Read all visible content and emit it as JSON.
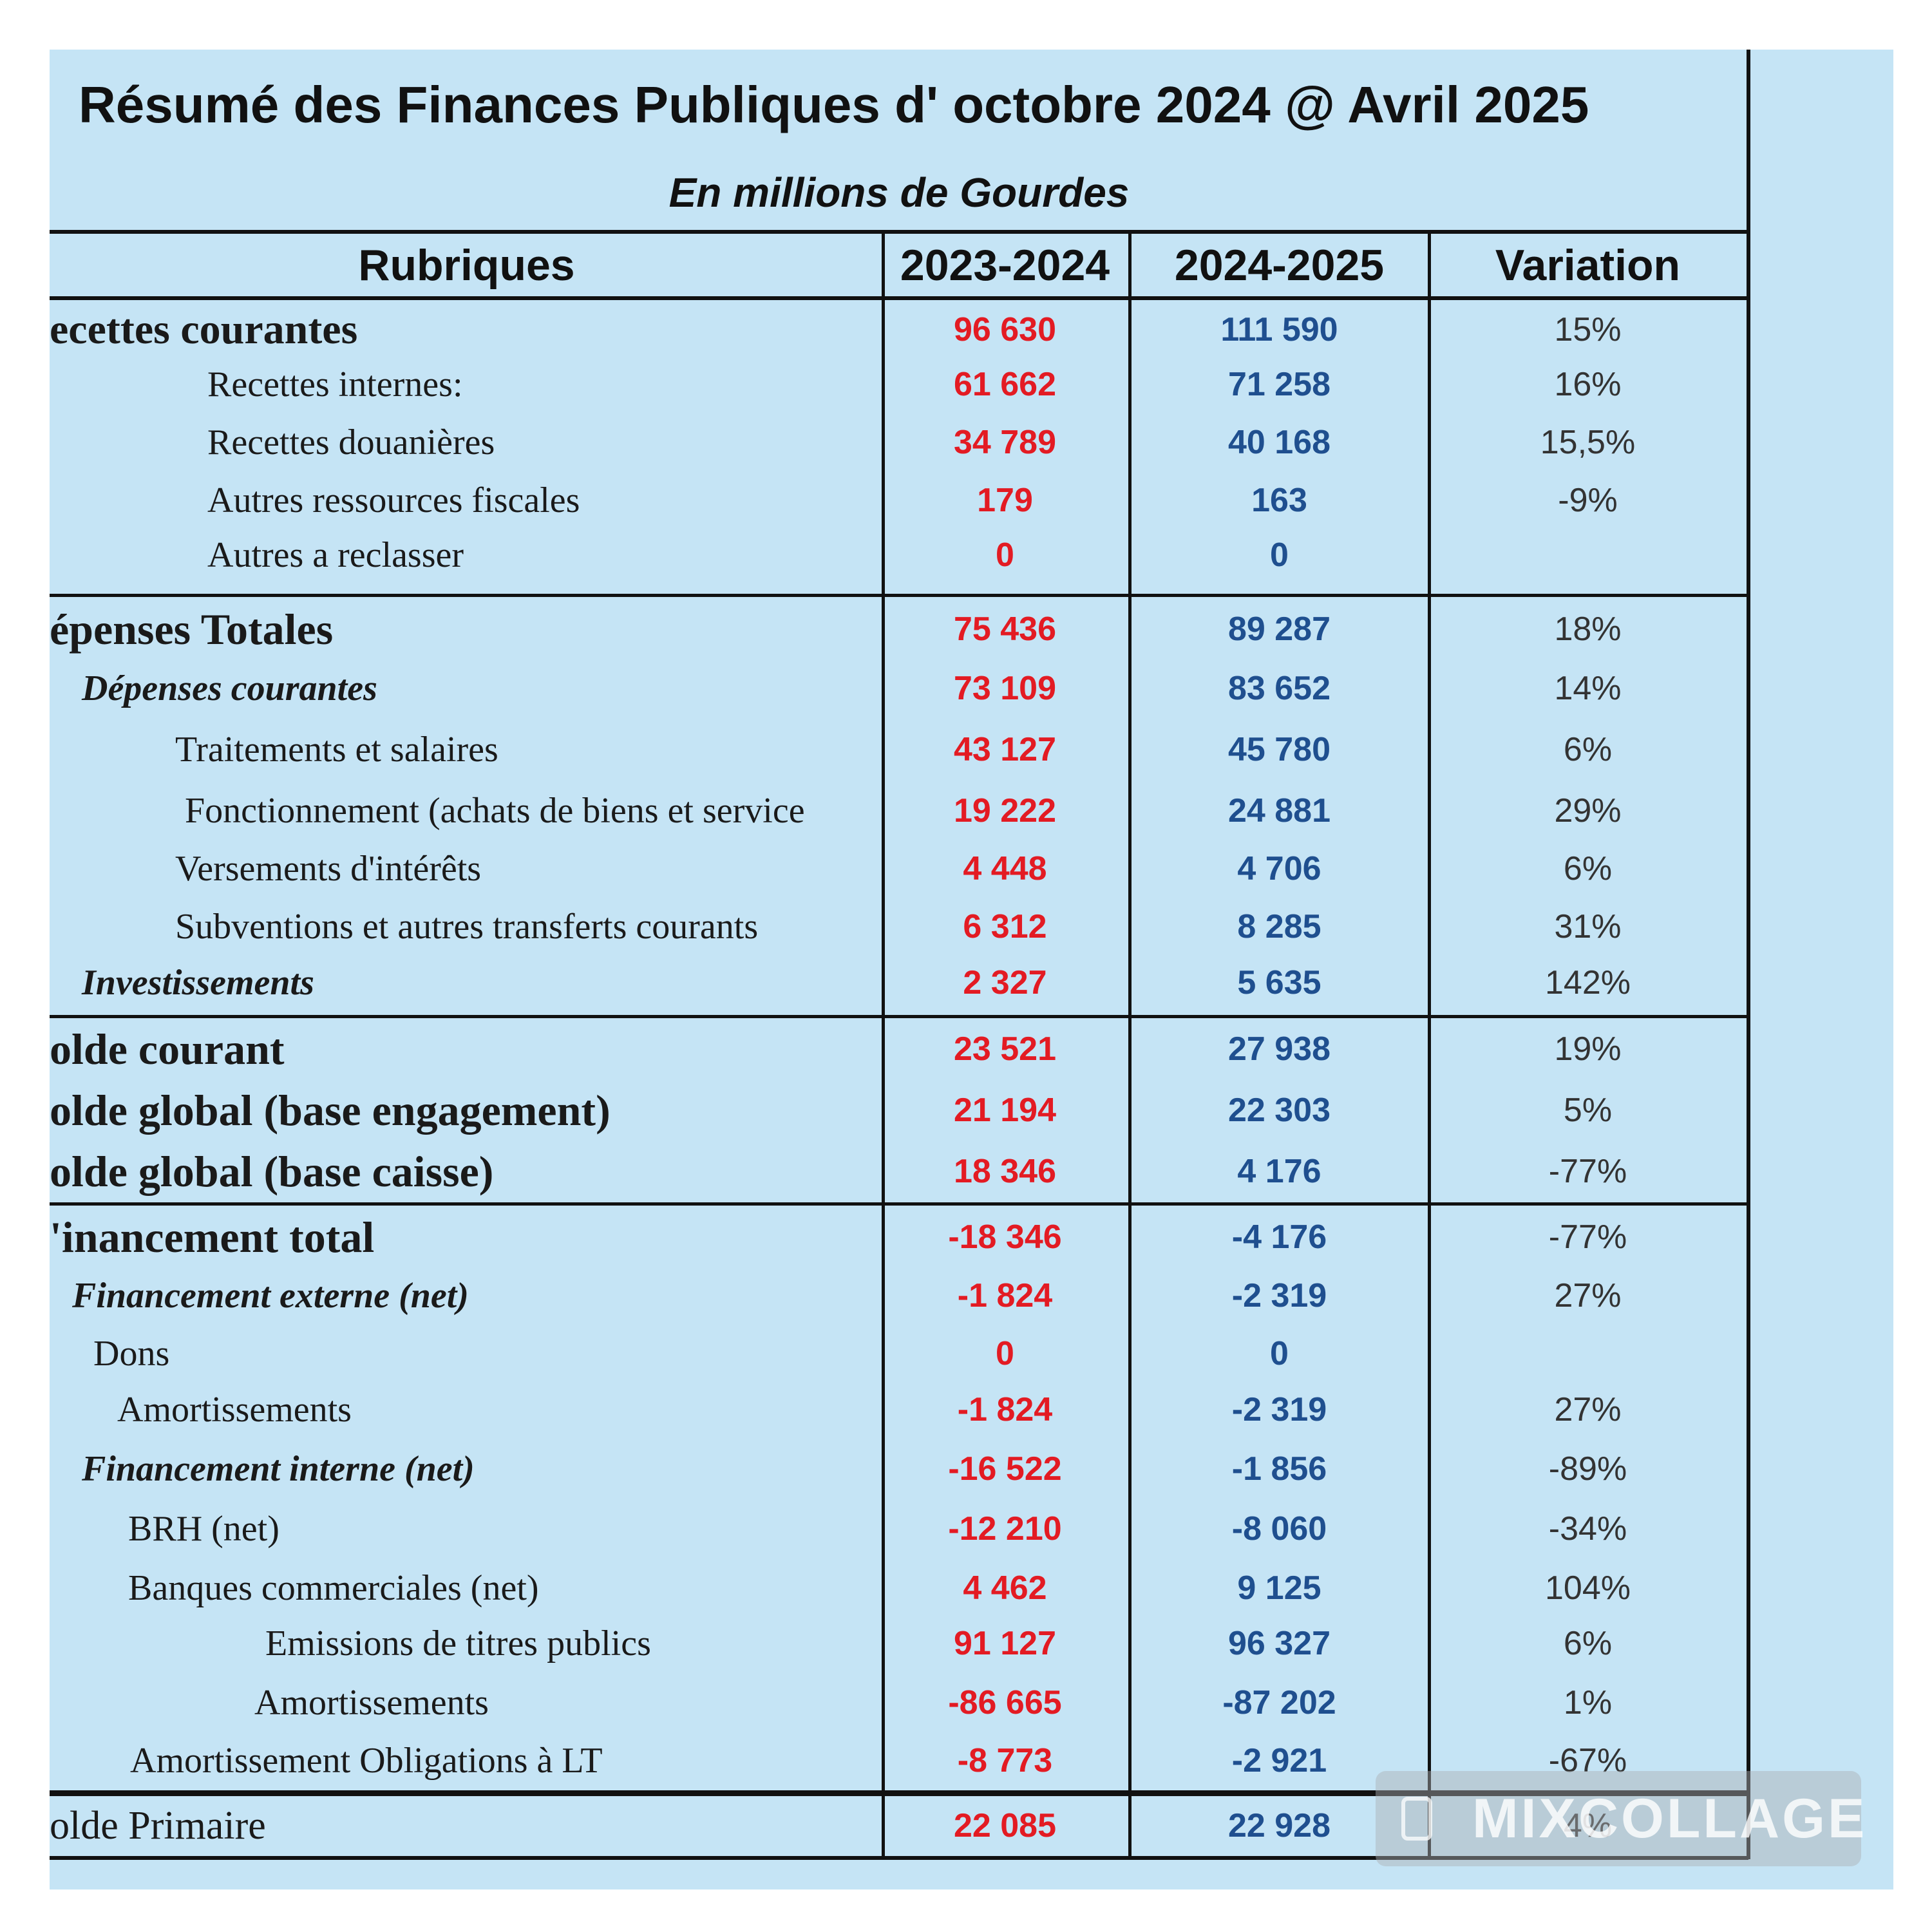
{
  "title": "Résumé des Finances Publiques d' octobre 2024 @ Avril 2025",
  "subtitle": "En millions de Gourdes",
  "headers": {
    "label": "Rubriques",
    "col1": "2023-2024",
    "col2": "2024-2025",
    "col3": "Variation"
  },
  "rows": [
    {
      "label": "ecettes courantes",
      "v1": "96 630",
      "v2": "111 590",
      "v3": "15%"
    },
    {
      "label": "Recettes internes:",
      "v1": "61 662",
      "v2": "71 258",
      "v3": "16%"
    },
    {
      "label": "Recettes douanières",
      "v1": "34 789",
      "v2": "40 168",
      "v3": "15,5%"
    },
    {
      "label": "Autres ressources fiscales",
      "v1": "179",
      "v2": "163",
      "v3": "-9%"
    },
    {
      "label": "Autres a reclasser",
      "v1": "0",
      "v2": "0",
      "v3": ""
    },
    {
      "label": "épenses Totales",
      "v1": "75 436",
      "v2": "89 287",
      "v3": "18%"
    },
    {
      "label": "Dépenses courantes",
      "v1": "73 109",
      "v2": "83 652",
      "v3": "14%"
    },
    {
      "label": "Traitements et salaires",
      "v1": "43 127",
      "v2": "45 780",
      "v3": "6%"
    },
    {
      "label": "Fonctionnement (achats de biens et service",
      "v1": "19 222",
      "v2": "24 881",
      "v3": "29%"
    },
    {
      "label": "Versements d'intérêts",
      "v1": "4 448",
      "v2": "4 706",
      "v3": "6%"
    },
    {
      "label": "Subventions et autres transferts courants",
      "v1": "6 312",
      "v2": "8 285",
      "v3": "31%"
    },
    {
      "label": "Investissements",
      "v1": "2 327",
      "v2": "5 635",
      "v3": "142%"
    },
    {
      "label": "olde courant",
      "v1": "23 521",
      "v2": "27 938",
      "v3": "19%"
    },
    {
      "label": "olde global (base engagement)",
      "v1": "21 194",
      "v2": "22 303",
      "v3": "5%"
    },
    {
      "label": "olde global  (base caisse)",
      "v1": "18 346",
      "v2": "4 176",
      "v3": "-77%"
    },
    {
      "label": "'inancement total",
      "v1": "-18 346",
      "v2": "-4 176",
      "v3": "-77%"
    },
    {
      "label": "Financement externe (net)",
      "v1": "-1 824",
      "v2": "-2 319",
      "v3": "27%"
    },
    {
      "label": "Dons",
      "v1": "0",
      "v2": "0",
      "v3": ""
    },
    {
      "label": "Amortissements",
      "v1": "-1 824",
      "v2": "-2 319",
      "v3": "27%"
    },
    {
      "label": "Financement interne (net)",
      "v1": "-16 522",
      "v2": "-1 856",
      "v3": "-89%"
    },
    {
      "label": "BRH (net)",
      "v1": "-12 210",
      "v2": "-8 060",
      "v3": "-34%"
    },
    {
      "label": "Banques commerciales (net)",
      "v1": "4 462",
      "v2": "9 125",
      "v3": "104%"
    },
    {
      "label": "Emissions de titres publics",
      "v1": "91 127",
      "v2": "96 327",
      "v3": "6%"
    },
    {
      "label": "Amortissements",
      "v1": "-86 665",
      "v2": "-87 202",
      "v3": "1%"
    },
    {
      "label": "Amortissement Obligations à LT",
      "v1": "-8 773",
      "v2": "-2 921",
      "v3": "-67%"
    },
    {
      "label": "olde Primaire",
      "v1": "22 085",
      "v2": "22 928",
      "v3": "4%"
    }
  ],
  "watermark": {
    "text": "MIXCOLLAGE"
  }
}
